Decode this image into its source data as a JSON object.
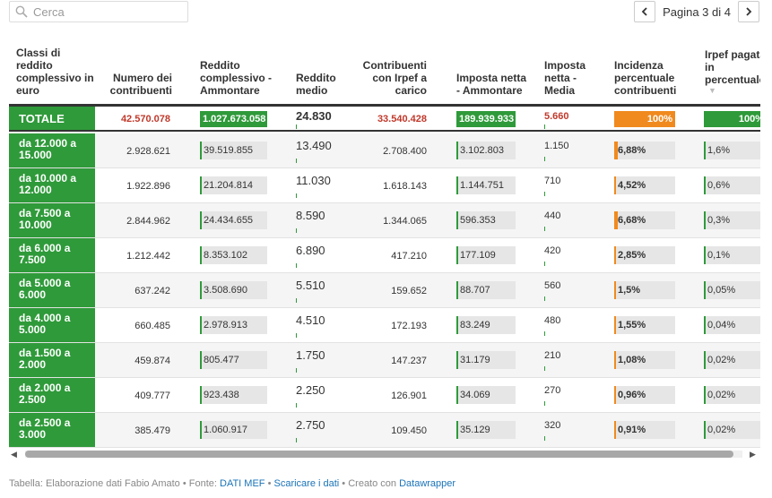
{
  "search": {
    "placeholder": "Cerca"
  },
  "pager": {
    "label": "Pagina 3 di 4"
  },
  "headers": {
    "classi": "Classi di reddito complessivo in euro",
    "numero": "Numero dei contribuenti",
    "reddito_amm": "Reddito complessivo - Ammontare",
    "reddito_medio": "Reddito medio",
    "contribuenti_irpef": "Contribuenti con Irpef a carico",
    "imposta_amm": "Imposta netta - Ammontare",
    "imposta_media": "Imposta netta - Media",
    "incidenza": "Incidenza percentuale contribuenti",
    "irpef_pct": "Irpef pagata in percentuale"
  },
  "total": {
    "label": "TOTALE",
    "numero": "42.570.078",
    "reddito_amm": "1.027.673.058",
    "reddito_medio": "24.830",
    "contribuenti_irpef": "33.540.428",
    "imposta_amm": "189.939.933",
    "imposta_media": "5.660",
    "incidenza": "100%",
    "irpef_pct": "100%"
  },
  "rows": [
    {
      "label": "da 12.000 a 15.000",
      "numero": "2.928.621",
      "reddito_amm": "39.519.855",
      "reddito_medio": "13.490",
      "contribuenti_irpef": "2.708.400",
      "imposta_amm": "3.102.803",
      "imposta_media": "1.150",
      "incidenza": "6,88%",
      "incidenza_frac": 0.0688,
      "irpef_pct": "1,6%"
    },
    {
      "label": "da 10.000 a 12.000",
      "numero": "1.922.896",
      "reddito_amm": "21.204.814",
      "reddito_medio": "11.030",
      "contribuenti_irpef": "1.618.143",
      "imposta_amm": "1.144.751",
      "imposta_media": "710",
      "incidenza": "4,52%",
      "incidenza_frac": 0.0452,
      "irpef_pct": "0,6%"
    },
    {
      "label": "da 7.500 a 10.000",
      "numero": "2.844.962",
      "reddito_amm": "24.434.655",
      "reddito_medio": "8.590",
      "contribuenti_irpef": "1.344.065",
      "imposta_amm": "596.353",
      "imposta_media": "440",
      "incidenza": "6,68%",
      "incidenza_frac": 0.0668,
      "irpef_pct": "0,3%"
    },
    {
      "label": "da 6.000 a 7.500",
      "numero": "1.212.442",
      "reddito_amm": "8.353.102",
      "reddito_medio": "6.890",
      "contribuenti_irpef": "417.210",
      "imposta_amm": "177.109",
      "imposta_media": "420",
      "incidenza": "2,85%",
      "incidenza_frac": 0.0285,
      "irpef_pct": "0,1%"
    },
    {
      "label": "da 5.000 a 6.000",
      "numero": "637.242",
      "reddito_amm": "3.508.690",
      "reddito_medio": "5.510",
      "contribuenti_irpef": "159.652",
      "imposta_amm": "88.707",
      "imposta_media": "560",
      "incidenza": "1,5%",
      "incidenza_frac": 0.015,
      "irpef_pct": "0,05%"
    },
    {
      "label": "da 4.000 a 5.000",
      "numero": "660.485",
      "reddito_amm": "2.978.913",
      "reddito_medio": "4.510",
      "contribuenti_irpef": "172.193",
      "imposta_amm": "83.249",
      "imposta_media": "480",
      "incidenza": "1,55%",
      "incidenza_frac": 0.0155,
      "irpef_pct": "0,04%"
    },
    {
      "label": "da 1.500 a 2.000",
      "numero": "459.874",
      "reddito_amm": "805.477",
      "reddito_medio": "1.750",
      "contribuenti_irpef": "147.237",
      "imposta_amm": "31.179",
      "imposta_media": "210",
      "incidenza": "1,08%",
      "incidenza_frac": 0.0108,
      "irpef_pct": "0,02%"
    },
    {
      "label": "da 2.000 a 2.500",
      "numero": "409.777",
      "reddito_amm": "923.438",
      "reddito_medio": "2.250",
      "contribuenti_irpef": "126.901",
      "imposta_amm": "34.069",
      "imposta_media": "270",
      "incidenza": "0,96%",
      "incidenza_frac": 0.0096,
      "irpef_pct": "0,02%"
    },
    {
      "label": "da 2.500 a 3.000",
      "numero": "385.479",
      "reddito_amm": "1.060.917",
      "reddito_medio": "2.750",
      "contribuenti_irpef": "109.450",
      "imposta_amm": "35.129",
      "imposta_media": "320",
      "incidenza": "0,91%",
      "incidenza_frac": 0.0091,
      "irpef_pct": "0,02%"
    }
  ],
  "footer": {
    "prefix": "Tabella: Elaborazione dati Fabio Amato • Fonte: ",
    "source_link": "DATI MEF",
    "sep1": " • ",
    "download_link": "Scaricare i dati",
    "sep2": " • Creato con ",
    "tool_link": "Datawrapper"
  },
  "colors": {
    "green": "#2f9a3a",
    "orange": "#f08a1e",
    "red": "#c0392b"
  },
  "icons": {
    "search": "search-icon",
    "prev": "chevron-left-icon",
    "next": "chevron-right-icon"
  }
}
